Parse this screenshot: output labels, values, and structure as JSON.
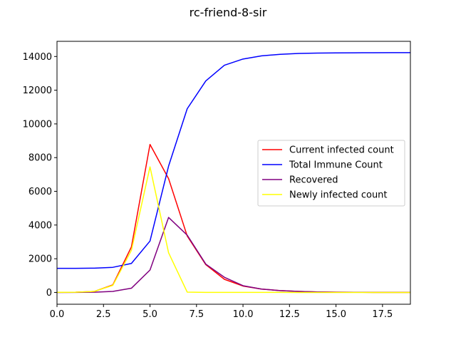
{
  "chart_data": {
    "type": "line",
    "title": "rc-friend-8-sir",
    "xlabel": "",
    "ylabel": "",
    "xlim": [
      0,
      19
    ],
    "ylim": [
      -700,
      14900
    ],
    "x_ticks": [
      0.0,
      2.5,
      5.0,
      7.5,
      10.0,
      12.5,
      15.0,
      17.5
    ],
    "x_tick_labels": [
      "0.0",
      "2.5",
      "5.0",
      "7.5",
      "10.0",
      "12.5",
      "15.0",
      "17.5"
    ],
    "y_ticks": [
      0,
      2000,
      4000,
      6000,
      8000,
      10000,
      12000,
      14000
    ],
    "y_tick_labels": [
      "0",
      "2000",
      "4000",
      "6000",
      "8000",
      "10000",
      "12000",
      "14000"
    ],
    "grid": false,
    "legend_position": "center-right",
    "x": [
      0,
      1,
      2,
      3,
      4,
      5,
      6,
      7,
      8,
      9,
      10,
      11,
      12,
      13,
      14,
      15,
      16,
      17,
      18,
      19
    ],
    "series": [
      {
        "name": "Current infected count",
        "color": "#ff0000",
        "values": [
          10,
          15,
          60,
          450,
          2700,
          8780,
          6750,
          3350,
          1650,
          780,
          380,
          200,
          110,
          60,
          30,
          15,
          10,
          5,
          3,
          2
        ]
      },
      {
        "name": "Total Immune Count",
        "color": "#0000ff",
        "values": [
          1430,
          1430,
          1440,
          1490,
          1720,
          3050,
          7500,
          10900,
          12550,
          13480,
          13850,
          14040,
          14130,
          14180,
          14200,
          14215,
          14220,
          14225,
          14228,
          14230
        ]
      },
      {
        "name": "Recovered",
        "color": "#800080",
        "values": [
          0,
          5,
          15,
          60,
          250,
          1330,
          4450,
          3400,
          1680,
          900,
          400,
          200,
          110,
          60,
          30,
          15,
          10,
          5,
          3,
          2
        ]
      },
      {
        "name": "Newly infected count",
        "color": "#ffff00",
        "values": [
          10,
          15,
          60,
          420,
          2500,
          7450,
          2350,
          20,
          5,
          3,
          2,
          1,
          1,
          0,
          0,
          0,
          0,
          0,
          0,
          0
        ]
      }
    ]
  }
}
